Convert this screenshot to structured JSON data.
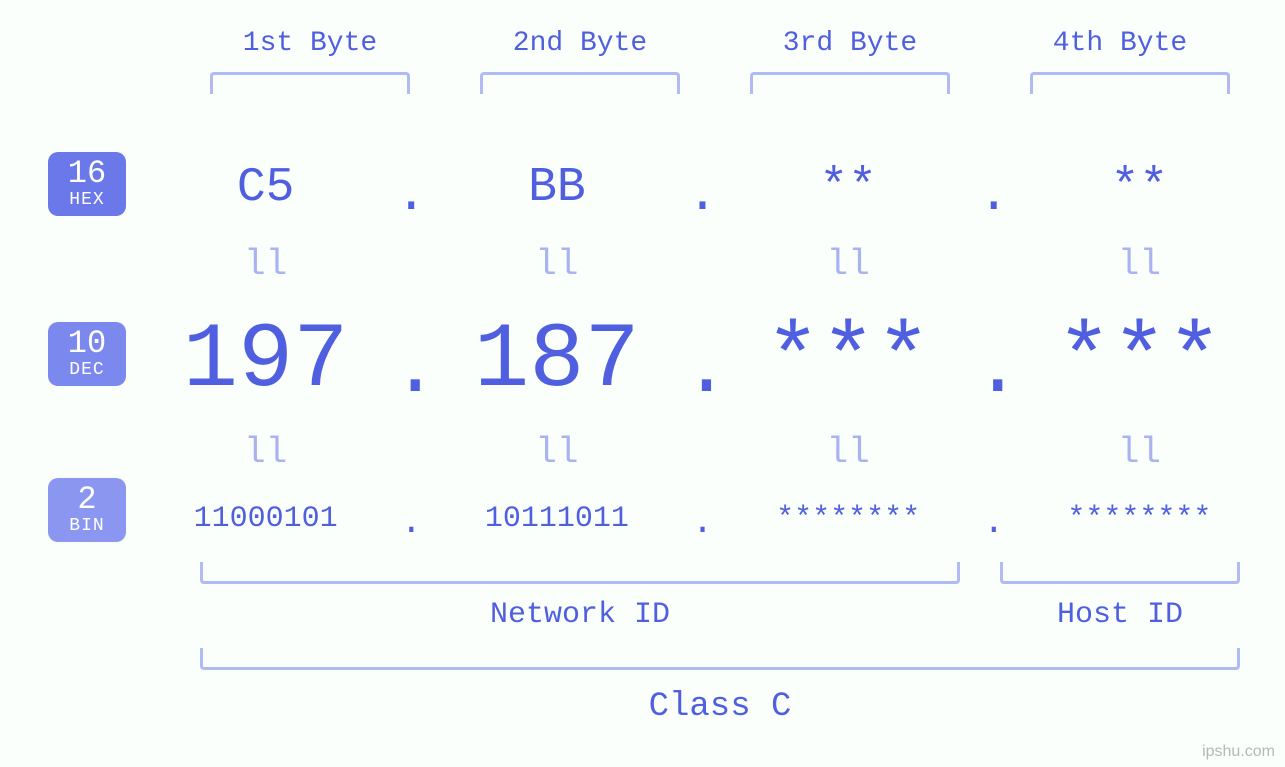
{
  "diagram": {
    "type": "infographic",
    "background_color": "#fafffc",
    "primary_color": "#4f5fe0",
    "bracket_color": "#b0baf4",
    "equals_color": "#aab3f2",
    "font_family": "Courier New, monospace",
    "byte_headers": [
      "1st Byte",
      "2nd Byte",
      "3rd Byte",
      "4th Byte"
    ],
    "byte_header_fontsize": 28,
    "bases": [
      {
        "num": "16",
        "label": "HEX",
        "bg": "#6a78ea"
      },
      {
        "num": "10",
        "label": "DEC",
        "bg": "#7b88ee"
      },
      {
        "num": "2",
        "label": "BIN",
        "bg": "#8b96f0"
      }
    ],
    "hex_values": [
      "C5",
      "BB",
      "**",
      "**"
    ],
    "hex_fontsize": 48,
    "dec_values": [
      "197",
      "187",
      "***",
      "***"
    ],
    "dec_fontsize": 92,
    "bin_values": [
      "11000101",
      "10111011",
      "********",
      "********"
    ],
    "bin_fontsize": 30,
    "dot": ".",
    "equals_glyph": "ll",
    "network_id_label": "Network ID",
    "host_id_label": "Host ID",
    "class_label": "Class C",
    "watermark": "ipshu.com"
  }
}
